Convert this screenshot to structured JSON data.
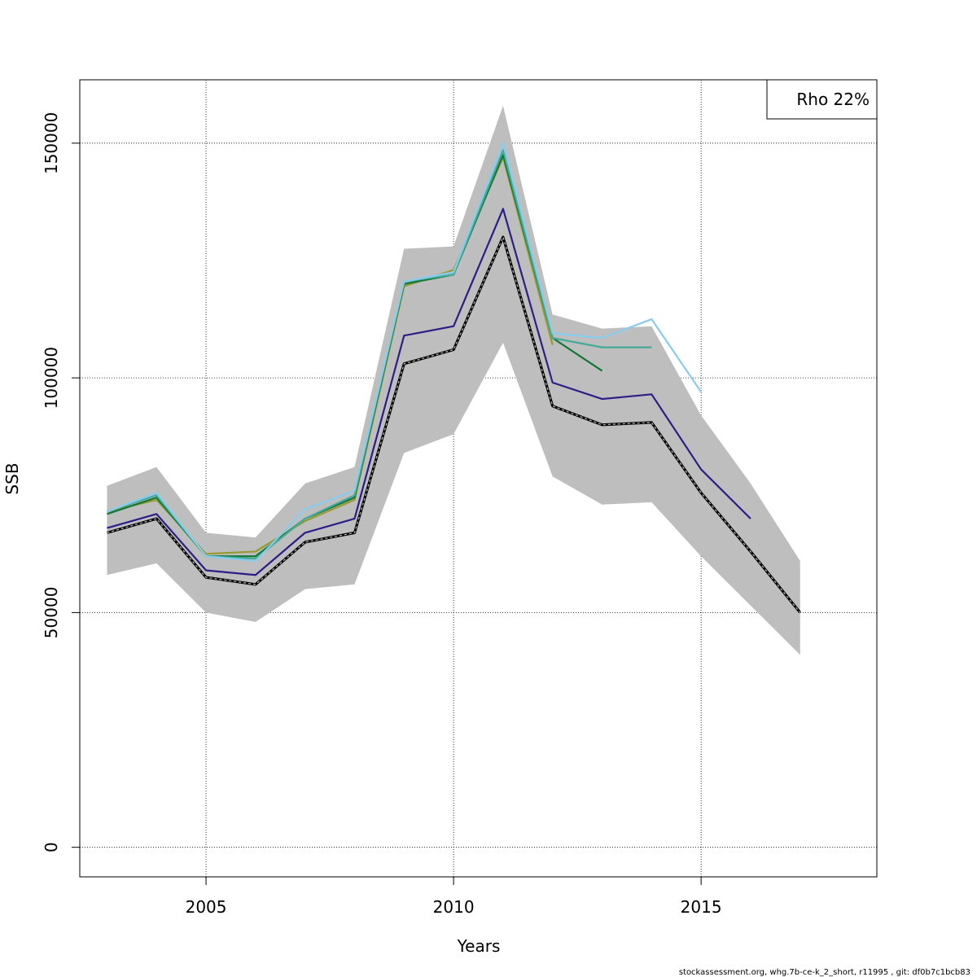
{
  "chart_data": {
    "type": "line",
    "xlabel": "Years",
    "ylabel": "SSB",
    "xlim": [
      2002.45,
      2018.55
    ],
    "ylim": [
      -6300,
      163500
    ],
    "xticks": [
      2005,
      2010,
      2015
    ],
    "yticks": [
      0,
      50000,
      100000,
      150000
    ],
    "xtick_labels": [
      "2005",
      "2010",
      "2015"
    ],
    "ytick_labels": [
      "0",
      "50000",
      "100000",
      "150000"
    ],
    "grid": true,
    "legend": {
      "position": "top-right",
      "text": "Rho 22%"
    },
    "colors": {
      "band": "#bebebe",
      "base": "#000000",
      "peel1": "#2b1e86",
      "peel2": "#88ccee",
      "peel3": "#44aa99",
      "peel4": "#117733",
      "peel5": "#999933"
    },
    "band": {
      "x": [
        2003,
        2004,
        2005,
        2006,
        2007,
        2008,
        2009,
        2010,
        2011,
        2012,
        2013,
        2014,
        2015,
        2016,
        2017
      ],
      "upper": [
        77000,
        81000,
        67000,
        66000,
        77500,
        81000,
        127500,
        128000,
        158000,
        113500,
        110500,
        111000,
        92000,
        77500,
        61000
      ],
      "lower": [
        58000,
        60500,
        50000,
        48000,
        55000,
        56000,
        84000,
        88000,
        107500,
        79000,
        73000,
        73500,
        62000,
        51500,
        41000
      ]
    },
    "series": [
      {
        "id": "base",
        "x": [
          2003,
          2004,
          2005,
          2006,
          2007,
          2008,
          2009,
          2010,
          2011,
          2012,
          2013,
          2014,
          2015,
          2016,
          2017
        ],
        "values": [
          67000,
          70000,
          57500,
          56000,
          65000,
          67000,
          103000,
          106000,
          130000,
          94000,
          90000,
          90500,
          75500,
          63000,
          50000
        ]
      },
      {
        "id": "peel1",
        "x": [
          2003,
          2004,
          2005,
          2006,
          2007,
          2008,
          2009,
          2010,
          2011,
          2012,
          2013,
          2014,
          2015,
          2016
        ],
        "values": [
          68000,
          71000,
          59000,
          58000,
          67000,
          70000,
          109000,
          111000,
          136000,
          99000,
          95500,
          96500,
          80500,
          70000
        ]
      },
      {
        "id": "peel2",
        "x": [
          2003,
          2004,
          2005,
          2006,
          2007,
          2008,
          2009,
          2010,
          2011,
          2012,
          2013,
          2014,
          2015
        ],
        "values": [
          71500,
          75500,
          62000,
          61000,
          72000,
          76000,
          120500,
          122500,
          150000,
          109500,
          108500,
          112500,
          97000
        ]
      },
      {
        "id": "peel3",
        "x": [
          2003,
          2004,
          2005,
          2006,
          2007,
          2008,
          2009,
          2010,
          2011,
          2012,
          2013,
          2014
        ],
        "values": [
          71500,
          75000,
          62000,
          61500,
          70000,
          75000,
          120500,
          122000,
          148500,
          108500,
          106500,
          106500
        ]
      },
      {
        "id": "peel4",
        "x": [
          2003,
          2004,
          2005,
          2006,
          2007,
          2008,
          2009,
          2010,
          2011,
          2012,
          2013
        ],
        "values": [
          71000,
          74500,
          62000,
          62000,
          70000,
          74500,
          120000,
          122000,
          147500,
          108500,
          101500
        ]
      },
      {
        "id": "peel5",
        "x": [
          2003,
          2004,
          2005,
          2006,
          2007,
          2008,
          2009,
          2010,
          2011,
          2012
        ],
        "values": [
          71500,
          74000,
          62500,
          63000,
          69500,
          74000,
          119500,
          123000,
          147000,
          107000
        ]
      }
    ]
  },
  "footer": "stockassessment.org, whg.7b-ce-k_2_short, r11995 , git: df0b7c1bcb83"
}
